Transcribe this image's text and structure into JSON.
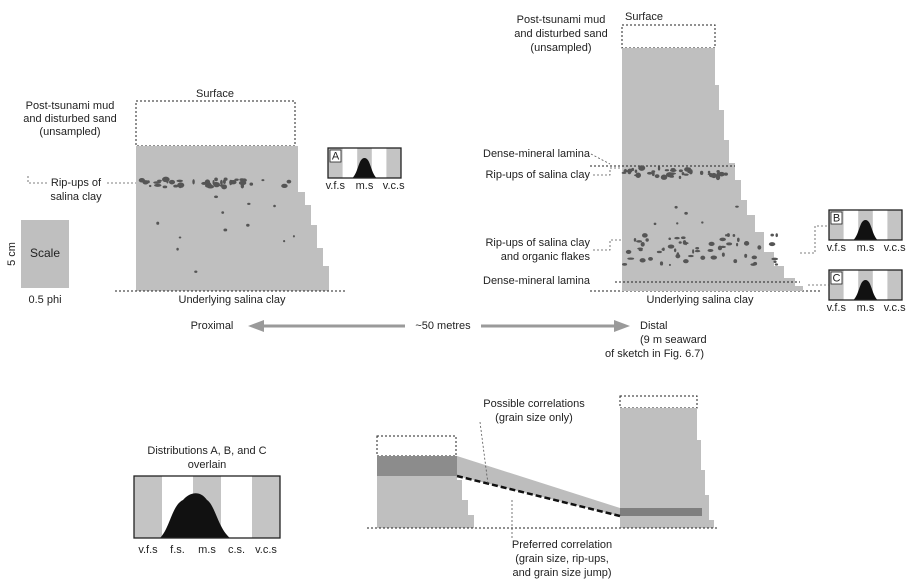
{
  "proximal": {
    "surface": "Surface",
    "unsampled": [
      "Post-tsunami mud",
      "and disturbed sand",
      "(unsampled)"
    ],
    "rip_ups": [
      "Rip-ups of",
      "salina clay"
    ],
    "base": "Underlying salina clay"
  },
  "scale": {
    "height": "5 cm",
    "label": "Scale",
    "width": "0.5 phi"
  },
  "inset_a": {
    "label": "A",
    "bins": [
      "v.f.s",
      "m.s",
      "v.c.s"
    ]
  },
  "inset_b": {
    "label": "B",
    "bins": [
      "v.f.s",
      "m.s",
      "v.c.s"
    ]
  },
  "inset_c": {
    "label": "C",
    "bins": [
      "v.f.s",
      "m.s",
      "v.c.s"
    ]
  },
  "transect": {
    "proximal": "Proximal",
    "distance": "~50 metres",
    "distal": [
      "Distal",
      "(9 m seaward",
      "of sketch in Fig. 6.7)"
    ]
  },
  "distal": {
    "surface": "Surface",
    "unsampled": [
      "Post-tsunami mud",
      "and disturbed sand",
      "(unsampled)"
    ],
    "lamina_upper": "Dense-mineral lamina",
    "rip_ups": "Rip-ups of salina clay",
    "rip_ups_organic": [
      "Rip-ups of salina clay",
      "and organic flakes"
    ],
    "lamina_lower": "Dense-mineral lamina",
    "base": "Underlying salina clay"
  },
  "overlay": {
    "title": [
      "Distributions A, B, and C",
      "overlain"
    ],
    "bins": [
      "v.f.s",
      "f.s.",
      "m.s",
      "c.s.",
      "v.c.s"
    ]
  },
  "correlation": {
    "possible": [
      "Possible correlations",
      "(grain size only)"
    ],
    "preferred": [
      "Preferred correlation",
      "(grain size, rip-ups,",
      "and grain size jump)"
    ]
  }
}
